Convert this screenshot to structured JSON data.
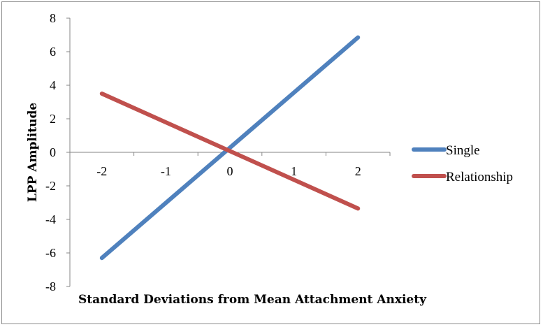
{
  "chart_data": {
    "type": "line",
    "title": "",
    "xlabel": "Standard Deviations from Mean Attachment Anxiety",
    "ylabel": "LPP Amplitude",
    "x_ticks": [
      "-2",
      "-1",
      "0",
      "1",
      "2"
    ],
    "y_ticks": [
      "8",
      "6",
      "4",
      "2",
      "0",
      "-2",
      "-4",
      "-6",
      "-8"
    ],
    "xlim": [
      -2.5,
      2.5
    ],
    "ylim": [
      -8,
      8
    ],
    "grid": false,
    "legend_position": "right",
    "series": [
      {
        "name": "Single",
        "color": "#4f81bd",
        "x": [
          -2,
          2
        ],
        "y": [
          -6.3,
          6.85
        ]
      },
      {
        "name": "Relationship",
        "color": "#c0504d",
        "x": [
          -2,
          2
        ],
        "y": [
          3.5,
          -3.35
        ]
      }
    ]
  }
}
